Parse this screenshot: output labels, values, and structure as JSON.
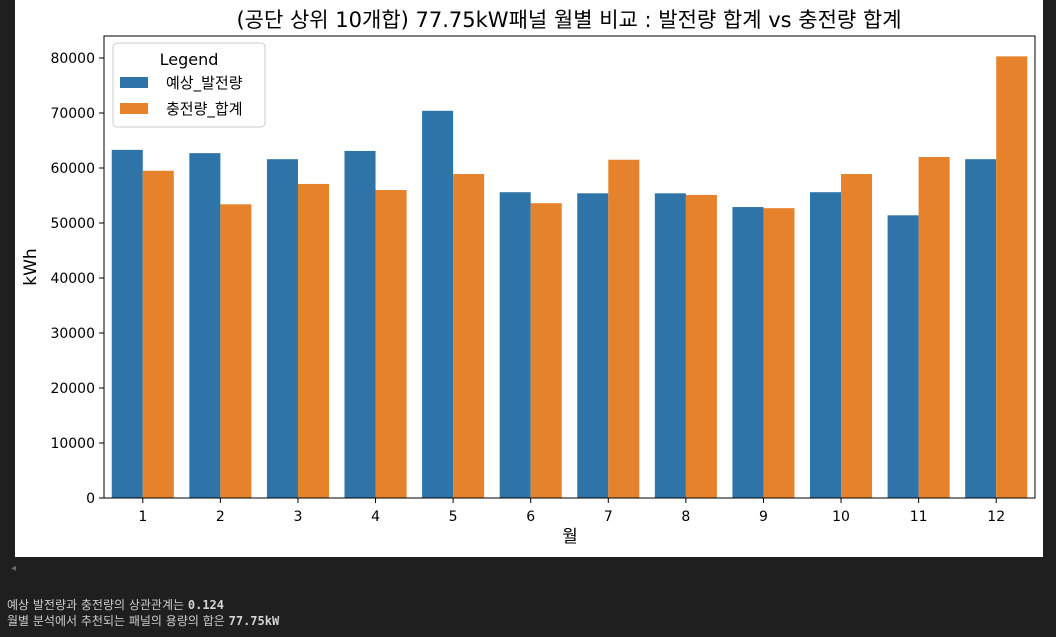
{
  "chart_data": {
    "type": "bar",
    "title": "(공단 상위 10개합) 77.75kW패널 월별 비교 : 발전량 합계 vs 충전량 합계",
    "xlabel": "월",
    "ylabel": "kWh",
    "categories": [
      "1",
      "2",
      "3",
      "4",
      "5",
      "6",
      "7",
      "8",
      "9",
      "10",
      "11",
      "12"
    ],
    "ylim": [
      0,
      84000
    ],
    "yticks": [
      0,
      10000,
      20000,
      30000,
      40000,
      50000,
      60000,
      70000,
      80000
    ],
    "grid": false,
    "legend": {
      "title": "Legend",
      "position": "top-left"
    },
    "series": [
      {
        "name": "예상_발전량",
        "color": "#2f74a8",
        "values": [
          63300,
          62700,
          61600,
          63100,
          70400,
          55600,
          55400,
          55400,
          52900,
          55600,
          51400,
          61600
        ]
      },
      {
        "name": "충전량_합계",
        "color": "#e5822b",
        "values": [
          59500,
          53400,
          57100,
          56000,
          58900,
          53600,
          61500,
          55100,
          52700,
          58900,
          62000,
          80300
        ]
      }
    ]
  },
  "output": {
    "line1_text": "예상 발전량과 충전량의 상관관계는",
    "line1_value": "0.124",
    "line2_text": "월별 분석에서 추천되는 패널의 용량의 합은",
    "line2_value": "77.75kW"
  },
  "ui": {
    "scroll_arrow": "◂"
  }
}
